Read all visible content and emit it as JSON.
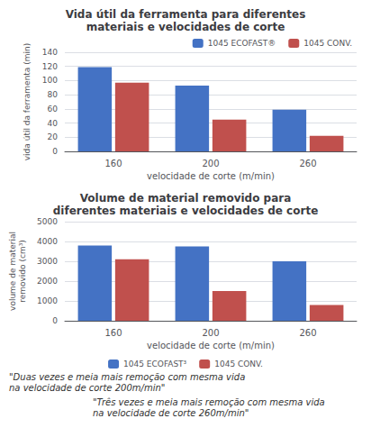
{
  "chart_data": [
    {
      "type": "bar",
      "title": "Vida útil da ferramenta para diferentes\nmateriais e velocidades de corte",
      "xlabel": "velocidade de corte (m/min)",
      "ylabel": "vida útil da ferramenta (min)",
      "categories": [
        "160",
        "200",
        "260"
      ],
      "series": [
        {
          "name": "1045 ECOFAST®",
          "color": "#4472C4",
          "values": [
            119,
            93,
            59
          ]
        },
        {
          "name": "1045 CONV.",
          "color": "#C0504D",
          "values": [
            97,
            45,
            22
          ]
        }
      ],
      "ylim": [
        0,
        140
      ],
      "yticks": [
        0,
        20,
        40,
        60,
        80,
        100,
        120,
        140
      ],
      "grid": true,
      "legend": "upper right"
    },
    {
      "type": "bar",
      "title": "Volume de material removido para\ndiferentes materiais e velocidades de corte",
      "xlabel": "velocidade de corte (m/min)",
      "ylabel": "volume de material\nremovido (cm³)",
      "categories": [
        "160",
        "200",
        "260"
      ],
      "series": [
        {
          "name": "1045 ECOFAST³",
          "color": "#4472C4",
          "values": [
            3800,
            3750,
            3000
          ]
        },
        {
          "name": "1045 CONV.",
          "color": "#C0504D",
          "values": [
            3100,
            1500,
            800
          ]
        }
      ],
      "ylim": [
        0,
        5000
      ],
      "yticks": [
        0,
        1000,
        2000,
        3000,
        4000,
        5000
      ],
      "grid": true,
      "legend": "lower center",
      "annotations": [
        "\"Duas vezes e meia mais remoção com mesma vida\nna velocidade de corte 200m/min\"",
        "\"Três vezes e meia mais remoção com mesma vida\nna velocidade de corte 260m/min\""
      ]
    }
  ]
}
